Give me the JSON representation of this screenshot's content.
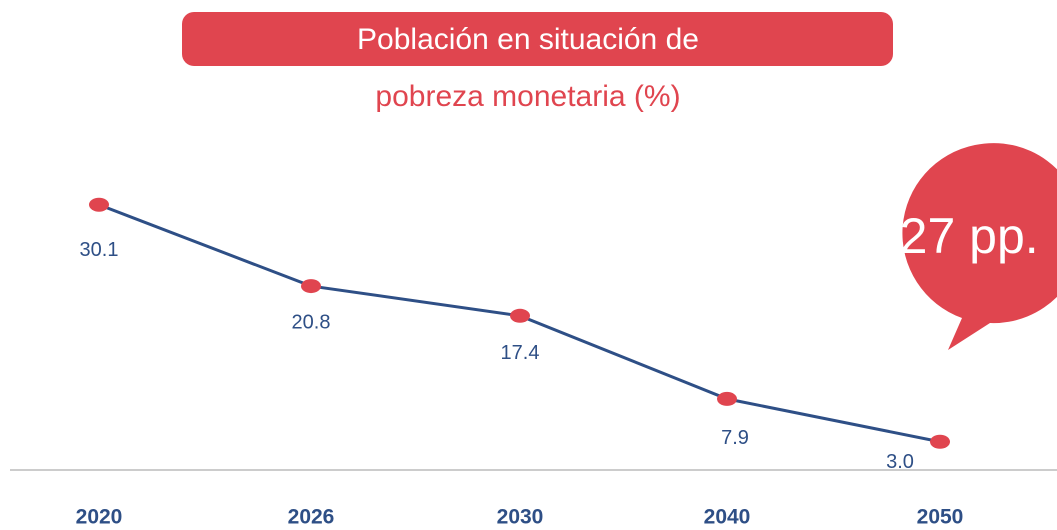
{
  "chart_data": {
    "type": "line",
    "title": [
      "Población en situación de",
      "pobreza monetaria (%)"
    ],
    "annotation": "-27 pp.",
    "categories": [
      "2020",
      "2026",
      "2030",
      "2040",
      "2050"
    ],
    "series": [
      {
        "color": "#2e4f86",
        "marker_color": "#e0454f",
        "values": [
          30.1,
          20.8,
          17.4,
          7.9,
          3.0
        ],
        "value_labels": [
          "30.1",
          "20.8",
          "17.4",
          "7.9",
          "3.0"
        ]
      }
    ],
    "ylim": [
      0,
      30
    ]
  }
}
